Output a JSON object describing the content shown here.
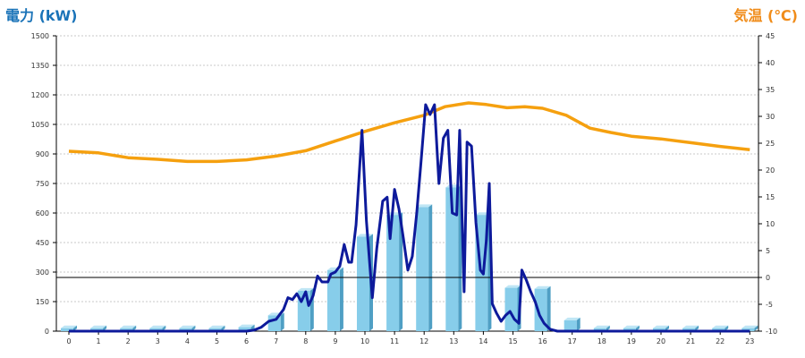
{
  "chart_data": {
    "type": "bar+line",
    "left_axis": {
      "label": "電力 (kW)",
      "min": 0,
      "max": 1500,
      "ticks": [
        0,
        150,
        300,
        450,
        600,
        750,
        900,
        1050,
        1200,
        1350,
        1500
      ]
    },
    "right_axis": {
      "label": "気温 (℃)",
      "min": -10,
      "max": 45,
      "ticks": [
        -10,
        -5,
        0,
        5,
        10,
        15,
        20,
        25,
        30,
        35,
        40,
        45
      ]
    },
    "categories": [
      "0",
      "1",
      "2",
      "3",
      "4",
      "5",
      "6",
      "7",
      "8",
      "9",
      "10",
      "11",
      "12",
      "13",
      "14",
      "15",
      "16",
      "17",
      "18",
      "19",
      "20",
      "21",
      "22",
      "23"
    ],
    "bars": [
      15,
      15,
      15,
      15,
      15,
      15,
      20,
      80,
      205,
      310,
      480,
      590,
      630,
      730,
      590,
      220,
      215,
      55,
      15,
      15,
      15,
      15,
      15,
      15
    ],
    "power_line": [
      [
        0,
        0
      ],
      [
        1,
        0
      ],
      [
        2,
        0
      ],
      [
        3,
        0
      ],
      [
        4,
        0
      ],
      [
        5,
        0
      ],
      [
        6,
        0
      ],
      [
        6.25,
        5
      ],
      [
        6.5,
        20
      ],
      [
        6.75,
        50
      ],
      [
        7,
        60
      ],
      [
        7.25,
        110
      ],
      [
        7.4,
        170
      ],
      [
        7.55,
        160
      ],
      [
        7.7,
        190
      ],
      [
        7.85,
        150
      ],
      [
        8,
        200
      ],
      [
        8.1,
        130
      ],
      [
        8.25,
        180
      ],
      [
        8.4,
        280
      ],
      [
        8.55,
        250
      ],
      [
        8.75,
        250
      ],
      [
        8.85,
        290
      ],
      [
        9,
        300
      ],
      [
        9.15,
        330
      ],
      [
        9.3,
        440
      ],
      [
        9.45,
        350
      ],
      [
        9.55,
        350
      ],
      [
        9.7,
        540
      ],
      [
        9.9,
        1020
      ],
      [
        10.05,
        560
      ],
      [
        10.25,
        170
      ],
      [
        10.4,
        420
      ],
      [
        10.6,
        660
      ],
      [
        10.75,
        680
      ],
      [
        10.85,
        470
      ],
      [
        11,
        720
      ],
      [
        11.15,
        620
      ],
      [
        11.3,
        470
      ],
      [
        11.45,
        310
      ],
      [
        11.6,
        380
      ],
      [
        11.75,
        600
      ],
      [
        11.9,
        870
      ],
      [
        12.05,
        1150
      ],
      [
        12.2,
        1100
      ],
      [
        12.35,
        1150
      ],
      [
        12.5,
        750
      ],
      [
        12.65,
        980
      ],
      [
        12.8,
        1020
      ],
      [
        12.95,
        600
      ],
      [
        13.1,
        590
      ],
      [
        13.2,
        1020
      ],
      [
        13.35,
        200
      ],
      [
        13.45,
        960
      ],
      [
        13.6,
        940
      ],
      [
        13.75,
        550
      ],
      [
        13.9,
        310
      ],
      [
        14,
        290
      ],
      [
        14.1,
        460
      ],
      [
        14.2,
        750
      ],
      [
        14.3,
        140
      ],
      [
        14.45,
        90
      ],
      [
        14.6,
        50
      ],
      [
        14.75,
        80
      ],
      [
        14.9,
        100
      ],
      [
        15.05,
        60
      ],
      [
        15.2,
        40
      ],
      [
        15.3,
        310
      ],
      [
        15.45,
        260
      ],
      [
        15.6,
        200
      ],
      [
        15.75,
        150
      ],
      [
        15.9,
        80
      ],
      [
        16.05,
        40
      ],
      [
        16.25,
        10
      ],
      [
        16.5,
        0
      ],
      [
        17,
        0
      ],
      [
        18,
        0
      ],
      [
        19,
        0
      ],
      [
        20,
        0
      ],
      [
        21,
        0
      ],
      [
        22,
        0
      ],
      [
        23,
        0
      ]
    ],
    "temperature_line": [
      [
        0,
        23.5
      ],
      [
        1,
        23.2
      ],
      [
        2,
        22.3
      ],
      [
        3,
        22
      ],
      [
        4,
        21.6
      ],
      [
        5,
        21.6
      ],
      [
        6,
        21.9
      ],
      [
        7,
        22.6
      ],
      [
        8,
        23.6
      ],
      [
        9,
        25.4
      ],
      [
        10,
        27.2
      ],
      [
        11,
        28.8
      ],
      [
        12,
        30.2
      ],
      [
        12.7,
        31.8
      ],
      [
        13.5,
        32.5
      ],
      [
        14.1,
        32.2
      ],
      [
        14.8,
        31.6
      ],
      [
        15.4,
        31.8
      ],
      [
        16,
        31.5
      ],
      [
        16.8,
        30.2
      ],
      [
        17.6,
        27.8
      ],
      [
        18.3,
        27
      ],
      [
        19,
        26.3
      ],
      [
        20,
        25.8
      ],
      [
        21,
        25.1
      ],
      [
        22,
        24.4
      ],
      [
        23,
        23.8
      ]
    ],
    "colors": {
      "bar": "#87cdea",
      "power_line": "#0d1a9b",
      "temperature_line": "#f5a00f",
      "left_label": "#1a73b8",
      "right_label": "#f08c1a"
    },
    "grid": "dashed horizontal",
    "reference_line_temp": 0
  }
}
